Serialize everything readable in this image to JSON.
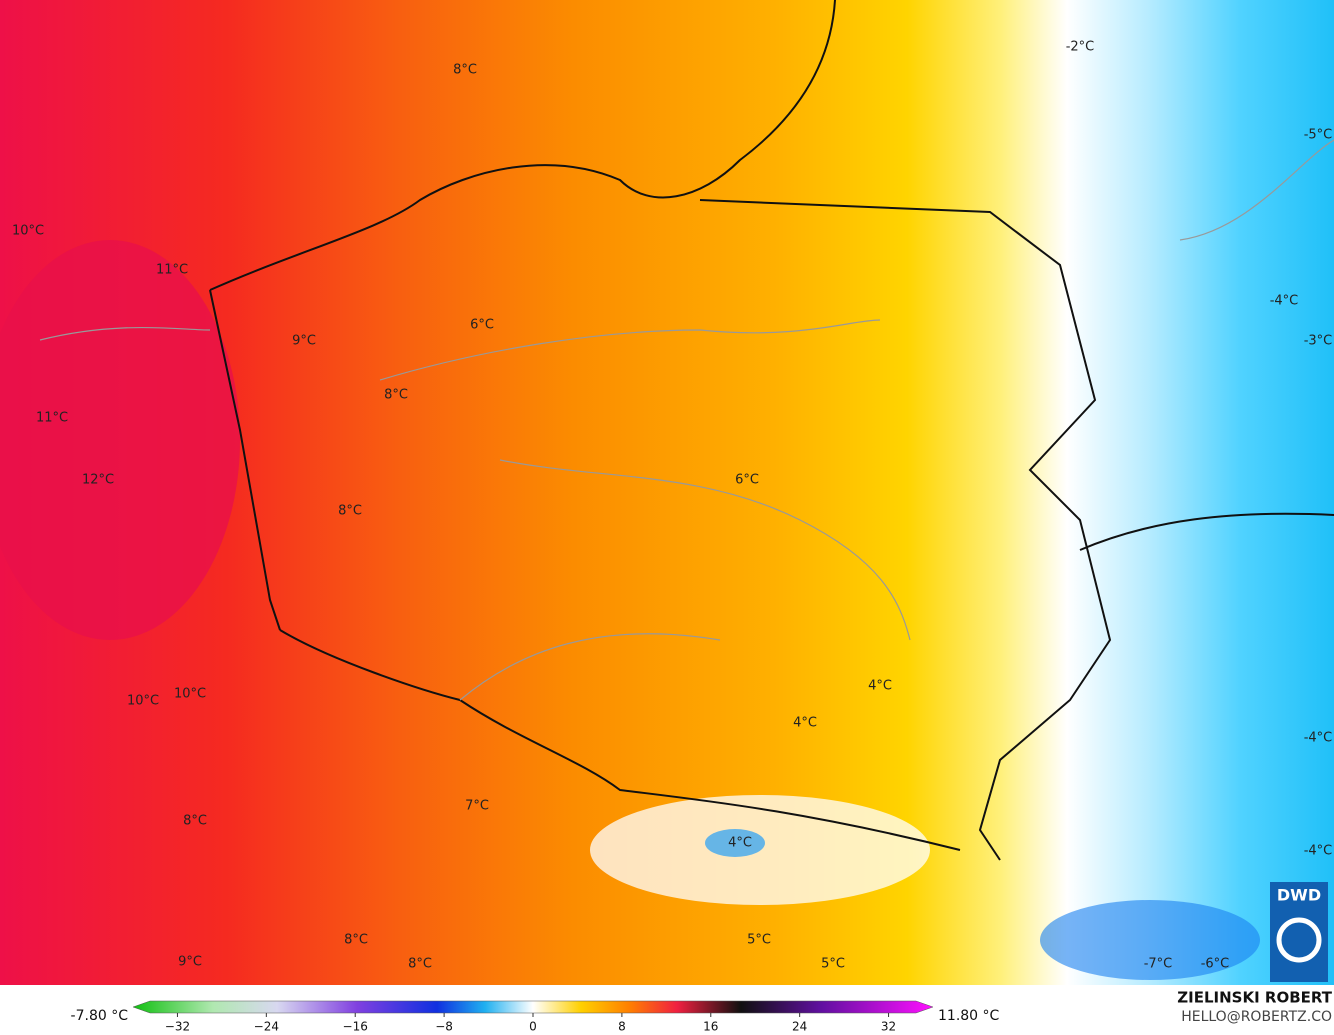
{
  "map": {
    "labels": [
      "-2°C",
      "8°C",
      "-5°C",
      "10°C",
      "11°C",
      "-4°C",
      "6°C",
      "9°C",
      "-3°C",
      "8°C",
      "11°C",
      "12°C",
      "6°C",
      "8°C",
      "10°C",
      "10°C",
      "4°C",
      "4°C",
      "-4°C",
      "7°C",
      "8°C",
      "4°C",
      "-4°C",
      "8°C",
      "5°C",
      "9°C",
      "8°C",
      "5°C",
      "-7°C",
      "-6°C"
    ],
    "logo": "DWD"
  },
  "colorbar": {
    "min_label": "-7.80 °C",
    "max_label": "11.80 °C",
    "range": [
      -36,
      36
    ],
    "ticks": [
      {
        "value": -32,
        "label": "−32"
      },
      {
        "value": -24,
        "label": "−24"
      },
      {
        "value": -16,
        "label": "−16"
      },
      {
        "value": -8,
        "label": "−8"
      },
      0,
      8,
      16,
      24,
      32
    ]
  },
  "footer": {
    "author": "ZIELINSKI ROBERT",
    "email": "HELLO@ROBERTZ.CO"
  }
}
